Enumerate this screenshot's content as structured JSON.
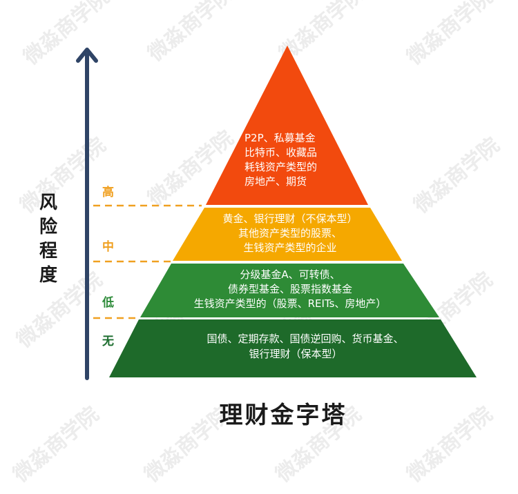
{
  "watermark": "微淼商学院",
  "title": "理财金字塔",
  "axis": {
    "title_chars": [
      "风",
      "险",
      "程",
      "度"
    ],
    "color": "#2f4466"
  },
  "levels": [
    {
      "label": "高",
      "color": "#f0a020"
    },
    {
      "label": "中",
      "color": "#f0a020"
    },
    {
      "label": "低",
      "color": "#2e8b3a"
    },
    {
      "label": "无",
      "color": "#1e6e30"
    }
  ],
  "tiers": [
    {
      "name": "high",
      "color": "#f24a0e",
      "lines": [
        "P2P、私募基金",
        "比特币、收藏品",
        "耗钱资产类型的",
        "房地产、期货"
      ]
    },
    {
      "name": "medium",
      "color": "#f5a800",
      "lines": [
        "黄金、银行理财（不保本型）",
        "其他资产类型的股票、",
        "生钱资产类型的企业"
      ]
    },
    {
      "name": "low",
      "color": "#2e8b36",
      "lines": [
        "分级基金A、可转债、",
        "债券型基金、股票指数基金",
        "生钱资产类型的（股票、REITs、房地产）"
      ]
    },
    {
      "name": "none",
      "color": "#1e6a2a",
      "lines": [
        "国债、定期存款、国债逆回购、货币基金、",
        "银行理财（保本型）"
      ]
    }
  ],
  "dash_color": "#f0a020"
}
